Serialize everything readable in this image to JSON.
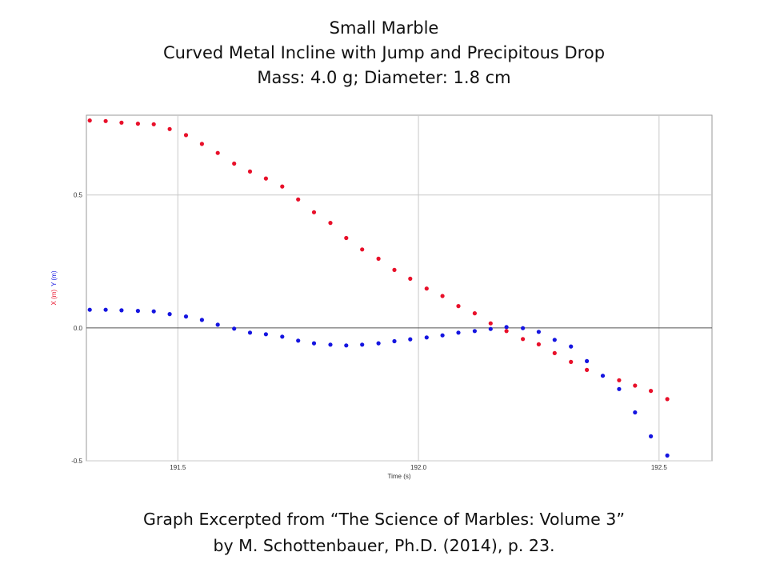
{
  "title": {
    "line1": "Small Marble",
    "line2": "Curved Metal Incline with Jump and Precipitous Drop",
    "line3": "Mass: 4.0 g; Diameter: 1.8 cm"
  },
  "caption": {
    "line1": "Graph Excerpted from “The Science of Marbles: Volume 3”",
    "line2": "by M. Schottenbauer, Ph.D. (2014), p. 23."
  },
  "colors": {
    "x_series": "#e8102a",
    "y_series": "#1515e0",
    "grid": "#c8c8c8",
    "zero_line": "#555555"
  },
  "chart_data": {
    "type": "scatter",
    "xlabel": "Time (s)",
    "ylabel_parts": [
      {
        "text": "X (m)",
        "color": "#e8102a"
      },
      {
        "text": "Y (m)",
        "color": "#1515e0"
      }
    ],
    "xlim": [
      191.31,
      192.61
    ],
    "ylim": [
      -0.5,
      0.8
    ],
    "xticks": [
      {
        "value": 191.5,
        "label": "191.5"
      },
      {
        "value": 192.0,
        "label": "192.0"
      },
      {
        "value": 192.5,
        "label": "192.5"
      }
    ],
    "yticks": [
      {
        "value": 0.5,
        "label": "0.5"
      },
      {
        "value": 0.0,
        "label": "0.0"
      },
      {
        "value": -0.5,
        "label": "-0.5"
      }
    ],
    "grid": true,
    "series": [
      {
        "name": "X (m)",
        "color": "#e8102a",
        "points": [
          [
            191.317,
            0.78
          ],
          [
            191.35,
            0.778
          ],
          [
            191.383,
            0.772
          ],
          [
            191.417,
            0.768
          ],
          [
            191.45,
            0.766
          ],
          [
            191.483,
            0.748
          ],
          [
            191.517,
            0.725
          ],
          [
            191.55,
            0.692
          ],
          [
            191.583,
            0.658
          ],
          [
            191.617,
            0.618
          ],
          [
            191.65,
            0.588
          ],
          [
            191.683,
            0.562
          ],
          [
            191.717,
            0.532
          ],
          [
            191.75,
            0.483
          ],
          [
            191.783,
            0.435
          ],
          [
            191.817,
            0.395
          ],
          [
            191.85,
            0.338
          ],
          [
            191.883,
            0.295
          ],
          [
            191.917,
            0.26
          ],
          [
            191.95,
            0.218
          ],
          [
            191.983,
            0.185
          ],
          [
            192.017,
            0.148
          ],
          [
            192.05,
            0.12
          ],
          [
            192.083,
            0.082
          ],
          [
            192.117,
            0.055
          ],
          [
            192.15,
            0.017
          ],
          [
            192.183,
            -0.012
          ],
          [
            192.217,
            -0.042
          ],
          [
            192.25,
            -0.062
          ],
          [
            192.283,
            -0.095
          ],
          [
            192.317,
            -0.128
          ],
          [
            192.35,
            -0.158
          ],
          [
            192.417,
            -0.197
          ],
          [
            192.45,
            -0.217
          ],
          [
            192.483,
            -0.237
          ],
          [
            192.517,
            -0.268
          ]
        ]
      },
      {
        "name": "Y (m)",
        "color": "#1515e0",
        "points": [
          [
            191.317,
            0.068
          ],
          [
            191.35,
            0.068
          ],
          [
            191.383,
            0.066
          ],
          [
            191.417,
            0.064
          ],
          [
            191.45,
            0.062
          ],
          [
            191.483,
            0.052
          ],
          [
            191.517,
            0.043
          ],
          [
            191.55,
            0.03
          ],
          [
            191.583,
            0.012
          ],
          [
            191.617,
            -0.003
          ],
          [
            191.65,
            -0.018
          ],
          [
            191.683,
            -0.024
          ],
          [
            191.717,
            -0.033
          ],
          [
            191.75,
            -0.048
          ],
          [
            191.783,
            -0.058
          ],
          [
            191.817,
            -0.063
          ],
          [
            191.85,
            -0.066
          ],
          [
            191.883,
            -0.063
          ],
          [
            191.917,
            -0.058
          ],
          [
            191.95,
            -0.05
          ],
          [
            191.983,
            -0.043
          ],
          [
            192.017,
            -0.036
          ],
          [
            192.05,
            -0.028
          ],
          [
            192.083,
            -0.018
          ],
          [
            192.117,
            -0.012
          ],
          [
            192.15,
            -0.004
          ],
          [
            192.183,
            0.003
          ],
          [
            192.217,
            -0.001
          ],
          [
            192.25,
            -0.015
          ],
          [
            192.283,
            -0.045
          ],
          [
            192.317,
            -0.07
          ],
          [
            192.35,
            -0.125
          ],
          [
            192.383,
            -0.18
          ],
          [
            192.417,
            -0.23
          ],
          [
            192.45,
            -0.318
          ],
          [
            192.483,
            -0.408
          ],
          [
            192.517,
            -0.48
          ]
        ]
      }
    ]
  }
}
